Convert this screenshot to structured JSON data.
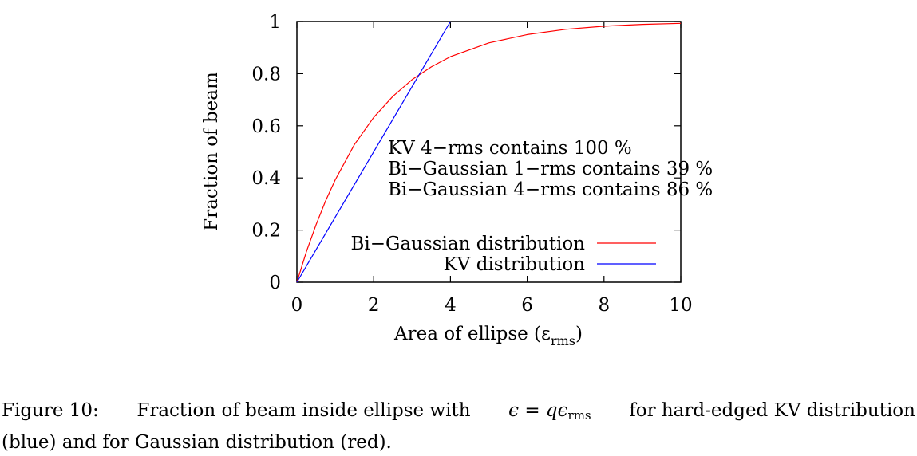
{
  "chart_data": {
    "type": "line",
    "xlabel": "Area of ellipse (εrms)",
    "xlabel_main": "Area of ellipse (ε",
    "xlabel_sub": "rms",
    "xlabel_close": ")",
    "ylabel": "Fraction of beam",
    "xlim": [
      0,
      10
    ],
    "ylim": [
      0,
      1
    ],
    "x_ticks": [
      0,
      2,
      4,
      6,
      8,
      10
    ],
    "x_tick_labels": [
      "0",
      "2",
      "4",
      "6",
      "8",
      "10"
    ],
    "y_ticks": [
      0,
      0.2,
      0.4,
      0.6,
      0.8,
      1
    ],
    "y_tick_labels": [
      "0",
      "0.2",
      "0.4",
      "0.6",
      "0.8",
      "1"
    ],
    "grid": false,
    "legend_position": "center-right",
    "series": [
      {
        "name": "Bi−Gaussian distribution",
        "color": "#ff0000",
        "x": [
          0,
          0.25,
          0.5,
          0.75,
          1,
          1.5,
          2,
          2.5,
          3,
          3.5,
          4,
          5,
          6,
          7,
          8,
          9,
          10
        ],
        "y": [
          0,
          0.118,
          0.221,
          0.313,
          0.393,
          0.528,
          0.632,
          0.713,
          0.777,
          0.826,
          0.865,
          0.918,
          0.95,
          0.97,
          0.982,
          0.989,
          0.993
        ]
      },
      {
        "name": "KV distribution",
        "color": "#0000ff",
        "x": [
          0,
          4
        ],
        "y": [
          0,
          1
        ]
      }
    ],
    "annotations": [
      "KV 4−rms contains 100 %",
      "Bi−Gaussian 1−rms contains 39 %",
      "Bi−Gaussian 4−rms contains 86 %"
    ]
  },
  "caption": {
    "label": "Figure 10:",
    "text_before": "Fraction of beam inside ellipse with",
    "eq_lhs": "ϵ",
    "eq_sign": "=",
    "eq_q": "q",
    "eq_eps": "ϵ",
    "eq_sub": "rms",
    "text_after_1": "for hard-edged KV distribution",
    "line2": "(blue) and for Gaussian distribution (red)."
  }
}
